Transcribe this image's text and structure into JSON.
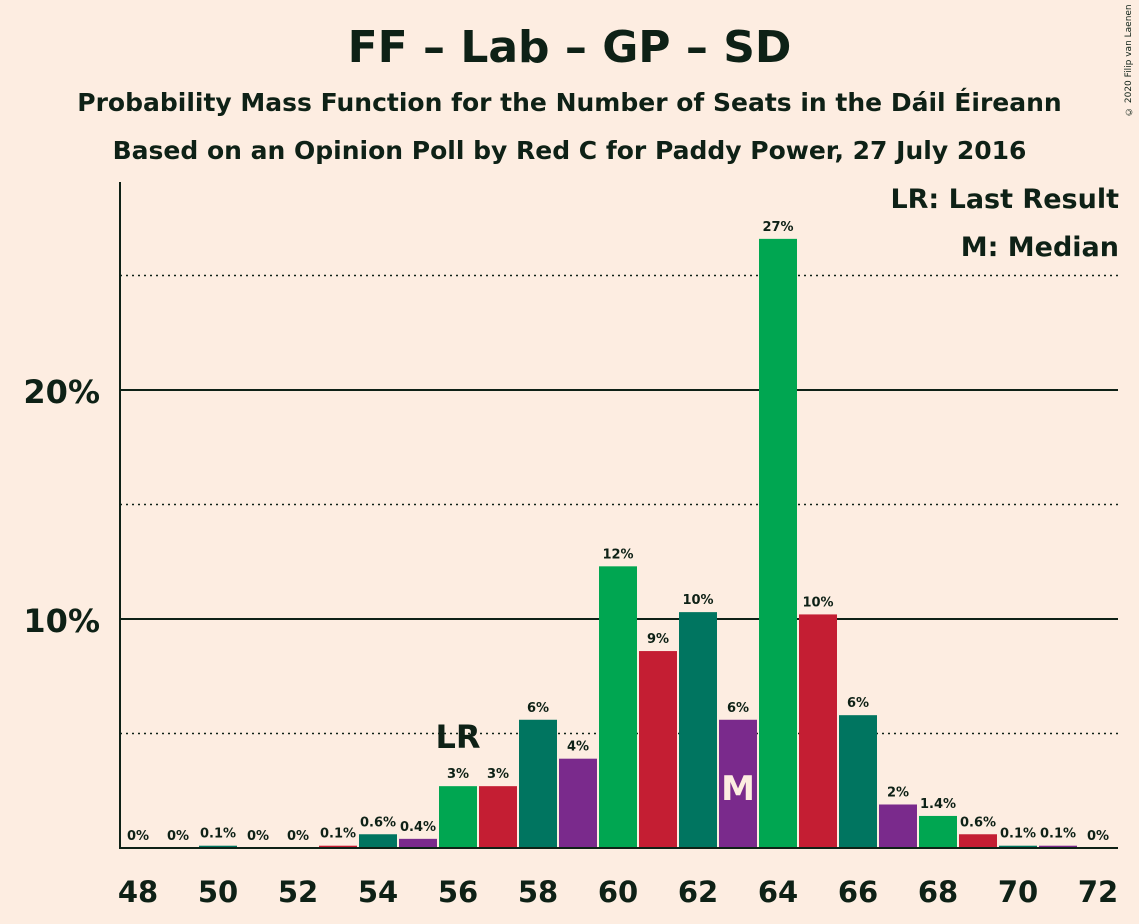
{
  "header": {
    "title": "FF – Lab – GP – SD",
    "subtitle1": "Probability Mass Function for the Number of Seats in the Dáil Éireann",
    "subtitle2": "Based on an Opinion Poll by Red C for Paddy Power, 27 July 2016",
    "copyright": "© 2020 Filip van Laenen"
  },
  "legend": {
    "lr": "LR: Last Result",
    "m": "M: Median"
  },
  "colors": {
    "background": "#FDEDE1",
    "text": "#0E2116",
    "bar_palette": [
      "#00A651",
      "#C41E33",
      "#007560",
      "#7A2A8C"
    ]
  },
  "chart_data": {
    "type": "bar",
    "title": "FF – Lab – GP – SD",
    "x": [
      48,
      49,
      50,
      51,
      52,
      53,
      54,
      55,
      56,
      57,
      58,
      59,
      60,
      61,
      62,
      63,
      64,
      65,
      66,
      67,
      68,
      69,
      70,
      71,
      72
    ],
    "values": [
      0,
      0,
      0.1,
      0,
      0,
      0.1,
      0.6,
      0.4,
      2.7,
      2.7,
      5.6,
      3.9,
      12.3,
      8.6,
      10.3,
      5.6,
      26.6,
      10.2,
      5.8,
      1.9,
      1.4,
      0.6,
      0.1,
      0.1,
      0
    ],
    "labels": [
      "0%",
      "0%",
      "0.1%",
      "0%",
      "0%",
      "0.1%",
      "0.6%",
      "0.4%",
      "3%",
      "3%",
      "6%",
      "4%",
      "12%",
      "9%",
      "10%",
      "6%",
      "27%",
      "10%",
      "6%",
      "2%",
      "1.4%",
      "0.6%",
      "0.1%",
      "0.1%",
      "0%"
    ],
    "colors": [
      "#00A651",
      "#C41E33",
      "#007560",
      "#7A2A8C",
      "#00A651",
      "#C41E33",
      "#007560",
      "#7A2A8C",
      "#00A651",
      "#C41E33",
      "#007560",
      "#7A2A8C",
      "#00A651",
      "#C41E33",
      "#007560",
      "#7A2A8C",
      "#00A651",
      "#C41E33",
      "#007560",
      "#7A2A8C",
      "#00A651",
      "#C41E33",
      "#007560",
      "#7A2A8C",
      "#00A651"
    ],
    "x_ticks": [
      48,
      50,
      52,
      54,
      56,
      58,
      60,
      62,
      64,
      66,
      68,
      70,
      72
    ],
    "y_ticks": [
      10,
      20
    ],
    "y_tick_labels": [
      "10%",
      "20%"
    ],
    "dotted_gridlines": [
      5,
      15,
      25
    ],
    "solid_gridlines": [
      10,
      20
    ],
    "ylim": [
      0,
      29
    ],
    "last_result": {
      "seat": 56,
      "label": "LR"
    },
    "median": {
      "seat": 63,
      "label": "M"
    },
    "legend_position": "top-right"
  }
}
